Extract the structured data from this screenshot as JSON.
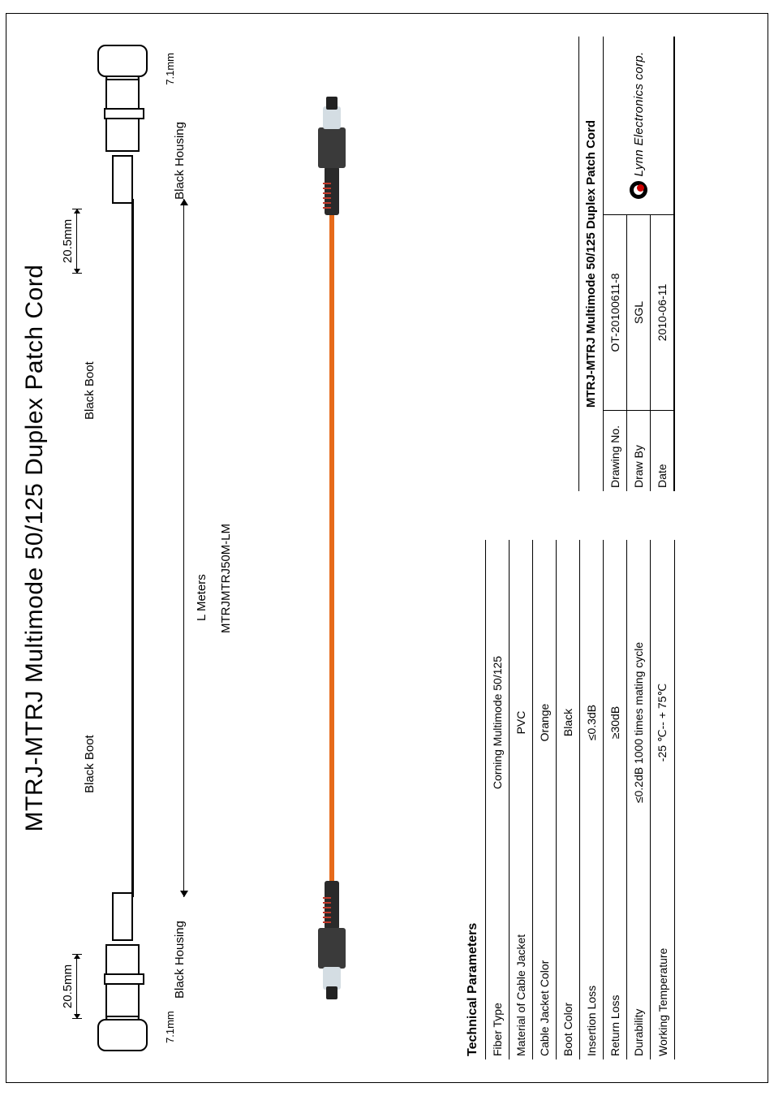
{
  "title": "MTRJ-MTRJ Multimode 50/125 Duplex Patch Cord",
  "diagram": {
    "dim_top_left": "20.5mm",
    "dim_top_right": "20.5mm",
    "black_boot_left": "Black Boot",
    "black_boot_right": "Black Boot",
    "black_housing_left": "Black Housing",
    "black_housing_right": "Black Housing",
    "dim_71_left": "7.1mm",
    "dim_71_right": "7.1mm",
    "length_label": "L Meters",
    "part_no": "MTRJMTRJ50M-LM"
  },
  "tech": {
    "header": "Technical Parameters",
    "rows": [
      {
        "label": "Fiber Type",
        "value": "Corning Multimode 50/125"
      },
      {
        "label": "Material of Cable Jacket",
        "value": "PVC"
      },
      {
        "label": "Cable Jacket Color",
        "value": "Orange"
      },
      {
        "label": "Boot Color",
        "value": "Black"
      },
      {
        "label": "Insertion Loss",
        "value": "≤0.3dB"
      },
      {
        "label": "Return Loss",
        "value": "≥30dB"
      },
      {
        "label": "Durability",
        "value": "≤0.2dB 1000 times mating cycle"
      },
      {
        "label": "Working Temperature",
        "value": "-25 ℃-- + 75℃"
      }
    ]
  },
  "meta": {
    "title": "MTRJ-MTRJ Multimode 50/125 Duplex Patch Cord",
    "drawing_no_label": "Drawing No.",
    "drawing_no": "OT-20100611-8",
    "draw_by_label": "Draw By",
    "draw_by": "SGL",
    "date_label": "Date",
    "date": "2010-06-11",
    "company": "Lynn Electronics corp."
  },
  "colors": {
    "cable": "#e66a1a",
    "accent": "#c0392b"
  }
}
